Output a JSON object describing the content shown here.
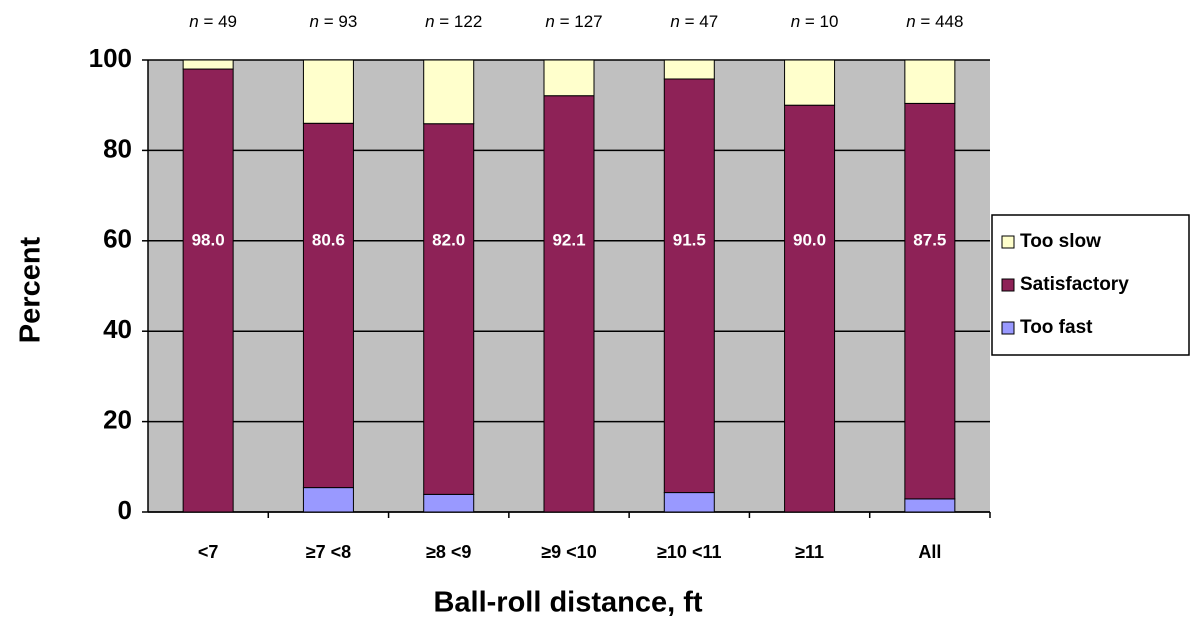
{
  "chart_data": {
    "type": "stacked_bar",
    "x_label": "Ball-roll distance, ft",
    "y_label": "Percent",
    "categories": [
      "<7",
      "≥7 <8",
      "≥8 <9",
      "≥9 <10",
      "≥10 <11",
      "≥11",
      "All"
    ],
    "annotations": [
      "n = 49",
      "n = 93",
      "n = 122",
      "n = 127",
      "n = 47",
      "n = 10",
      "n = 448"
    ],
    "series": [
      {
        "name": "Too fast",
        "color": "#9999ff",
        "values": [
          0,
          5.4,
          3.9,
          0,
          4.3,
          0,
          2.9
        ]
      },
      {
        "name": "Satisfactory",
        "color": "#8e2257",
        "values": [
          98.0,
          80.6,
          82.0,
          92.1,
          91.5,
          90.0,
          87.5
        ],
        "value_labels": [
          "98.0",
          "80.6",
          "82.0",
          "92.1",
          "91.5",
          "90.0",
          "87.5"
        ]
      },
      {
        "name": "Too slow",
        "color": "#ffffcc",
        "values": [
          2.0,
          14.0,
          14.1,
          7.9,
          4.2,
          10.0,
          9.6
        ]
      }
    ],
    "ylim": [
      0,
      100
    ],
    "yticks": [
      0,
      20,
      40,
      60,
      80,
      100
    ],
    "grid": true,
    "legend": "right"
  }
}
